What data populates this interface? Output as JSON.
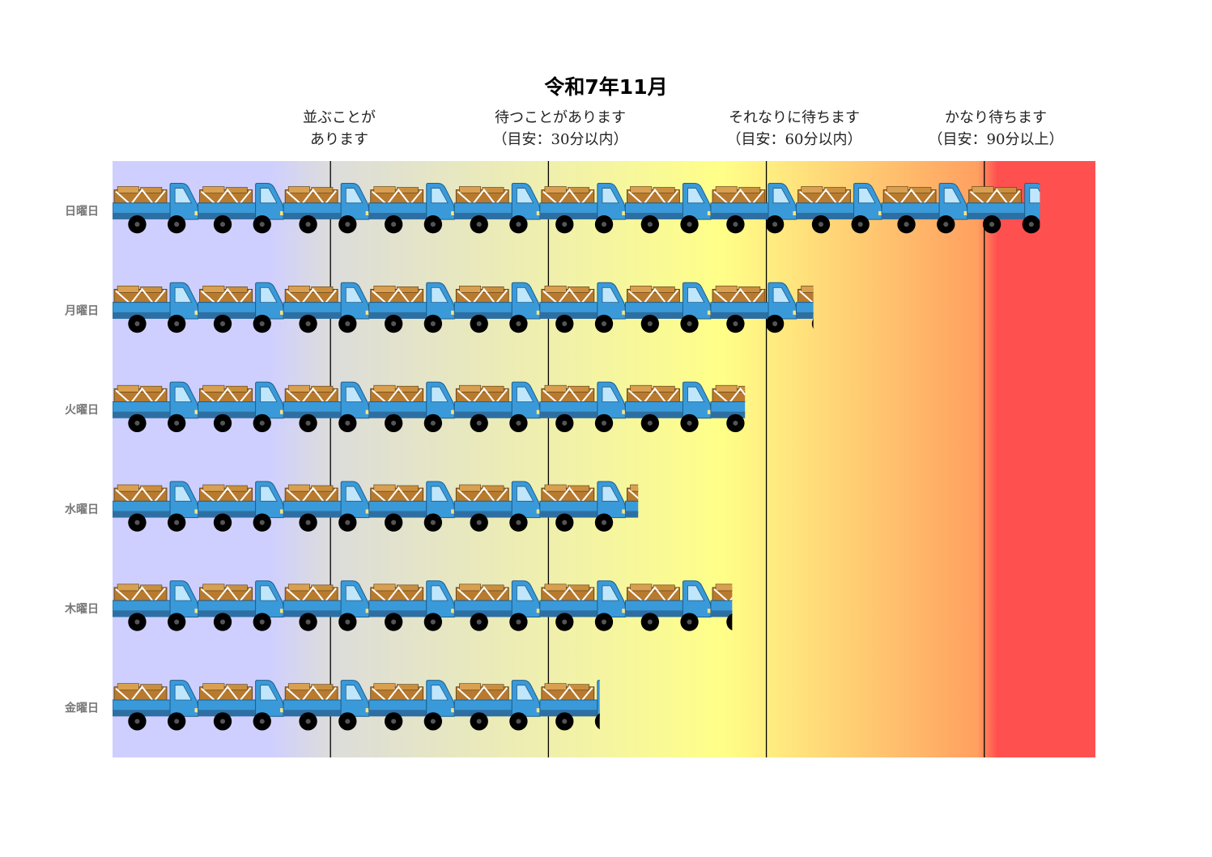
{
  "chart_data": {
    "type": "bar",
    "orientation": "horizontal",
    "title": "令和7年11月",
    "categories": [
      "日曜日",
      "月曜日",
      "火曜日",
      "水曜日",
      "木曜日",
      "金曜日"
    ],
    "values": [
      10.85,
      8.2,
      7.4,
      6.15,
      7.25,
      5.7
    ],
    "unit_icon": "truck-icon",
    "xlim": [
      0,
      11.5
    ],
    "thresholds": [
      2.55,
      5.1,
      7.65,
      10.2
    ],
    "zones": [
      {
        "line1": "並ぶことが",
        "line2": "あります"
      },
      {
        "line1": "待つことがあります",
        "line2": "（目安：30分以内）"
      },
      {
        "line1": "それなりに待ちます",
        "line2": "（目安：60分以内）"
      },
      {
        "line1": "かなり待ちます",
        "line2": "（目安：90分以上）"
      }
    ],
    "background_gradient": [
      "#cfcfff",
      "#cfcfff",
      "#dcdcdc",
      "#ffff88",
      "#ffa060",
      "#ff5050"
    ],
    "grid": false,
    "legend": "none"
  },
  "colors": {
    "truck_body": "#3a9ad9",
    "truck_window": "#bfe6fb",
    "cargo": "#b87a2e",
    "wheel": "#000000",
    "line": "#000000"
  }
}
